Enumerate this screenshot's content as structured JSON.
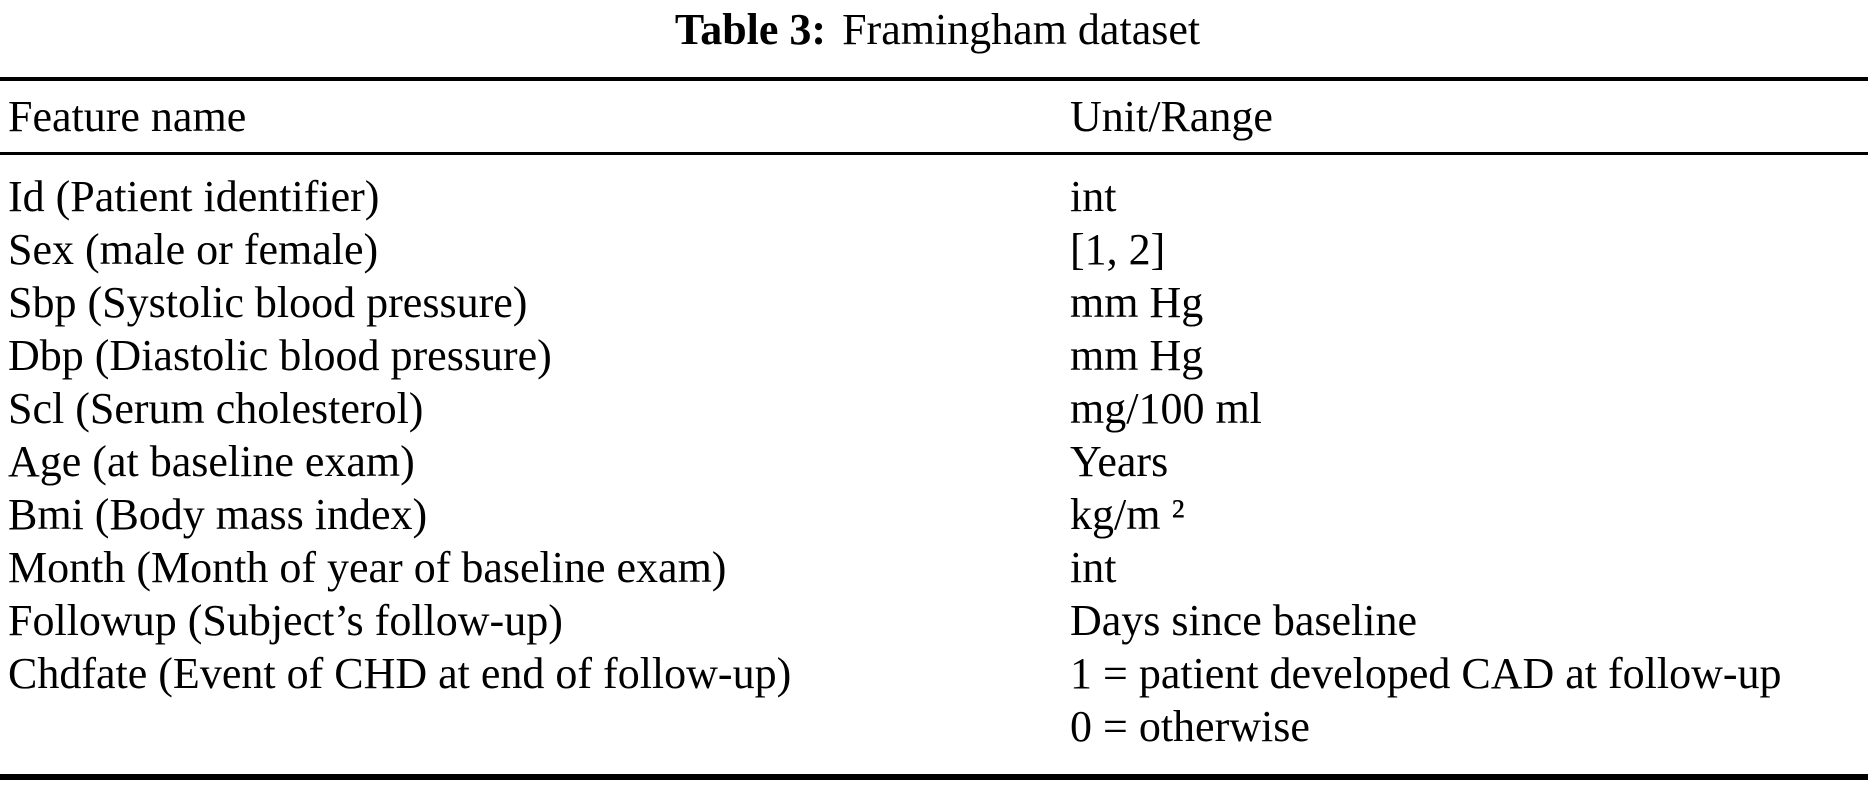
{
  "page": {
    "background": "#ffffff",
    "text_color": "#000000"
  },
  "caption": {
    "label": "Table 3:",
    "text": "Framingham dataset"
  },
  "table": {
    "columns": [
      {
        "label": "Feature name"
      },
      {
        "label": "Unit/Range"
      }
    ],
    "rows": [
      {
        "feature": "Id (Patient identifier)",
        "unit": "int"
      },
      {
        "feature": "Sex (male or female)",
        "unit": "[1, 2]"
      },
      {
        "feature": "Sbp (Systolic blood pressure)",
        "unit": "mm Hg"
      },
      {
        "feature": "Dbp (Diastolic blood pressure)",
        "unit": "mm Hg"
      },
      {
        "feature": "Scl (Serum cholesterol)",
        "unit": "mg/100 ml"
      },
      {
        "feature": "Age (at baseline exam)",
        "unit": "Years"
      },
      {
        "feature": "Bmi (Body mass index)",
        "unit": "kg/m ²"
      },
      {
        "feature": "Month (Month of year of baseline exam)",
        "unit": "int"
      },
      {
        "feature": "Followup (Subject’s follow-up)",
        "unit": "Days since baseline"
      },
      {
        "feature": "Chdfate (Event of CHD at end of follow-up)",
        "unit": "1 = patient developed CAD at follow-up\n0 = otherwise"
      }
    ]
  }
}
